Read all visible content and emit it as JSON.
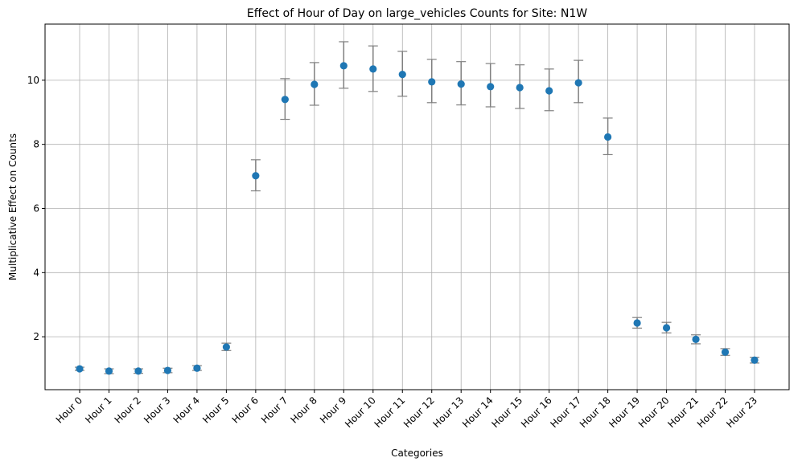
{
  "chart_data": {
    "type": "scatter",
    "title": "Effect of Hour of Day on large_vehicles Counts for Site: N1W",
    "xlabel": "Categories",
    "ylabel": "Multiplicative Effect on Counts",
    "ylim": [
      0.35,
      11.75
    ],
    "yticks": [
      2,
      4,
      6,
      8,
      10
    ],
    "grid": true,
    "categories": [
      "Hour 0",
      "Hour 1",
      "Hour 2",
      "Hour 3",
      "Hour 4",
      "Hour 5",
      "Hour 6",
      "Hour 7",
      "Hour 8",
      "Hour 9",
      "Hour 10",
      "Hour 11",
      "Hour 12",
      "Hour 13",
      "Hour 14",
      "Hour 15",
      "Hour 16",
      "Hour 17",
      "Hour 18",
      "Hour 19",
      "Hour 20",
      "Hour 21",
      "Hour 22",
      "Hour 23"
    ],
    "values": [
      1.0,
      0.93,
      0.93,
      0.95,
      1.02,
      1.68,
      7.02,
      9.4,
      9.87,
      10.45,
      10.35,
      10.18,
      9.95,
      9.88,
      9.8,
      9.77,
      9.67,
      9.92,
      8.23,
      2.43,
      2.28,
      1.92,
      1.52,
      1.27
    ],
    "lower": [
      0.95,
      0.85,
      0.86,
      0.88,
      0.95,
      1.57,
      6.55,
      8.78,
      9.22,
      9.75,
      9.65,
      9.5,
      9.3,
      9.23,
      9.17,
      9.12,
      9.05,
      9.3,
      7.68,
      2.27,
      2.12,
      1.78,
      1.42,
      1.18
    ],
    "upper": [
      1.05,
      1.0,
      1.0,
      1.02,
      1.1,
      1.8,
      7.52,
      10.05,
      10.55,
      11.2,
      11.07,
      10.9,
      10.65,
      10.58,
      10.52,
      10.48,
      10.35,
      10.62,
      8.82,
      2.6,
      2.45,
      2.06,
      1.63,
      1.36
    ],
    "colors": {
      "marker": "#1f77b4",
      "errorbar": "#808080",
      "grid": "#b0b0b0"
    }
  }
}
